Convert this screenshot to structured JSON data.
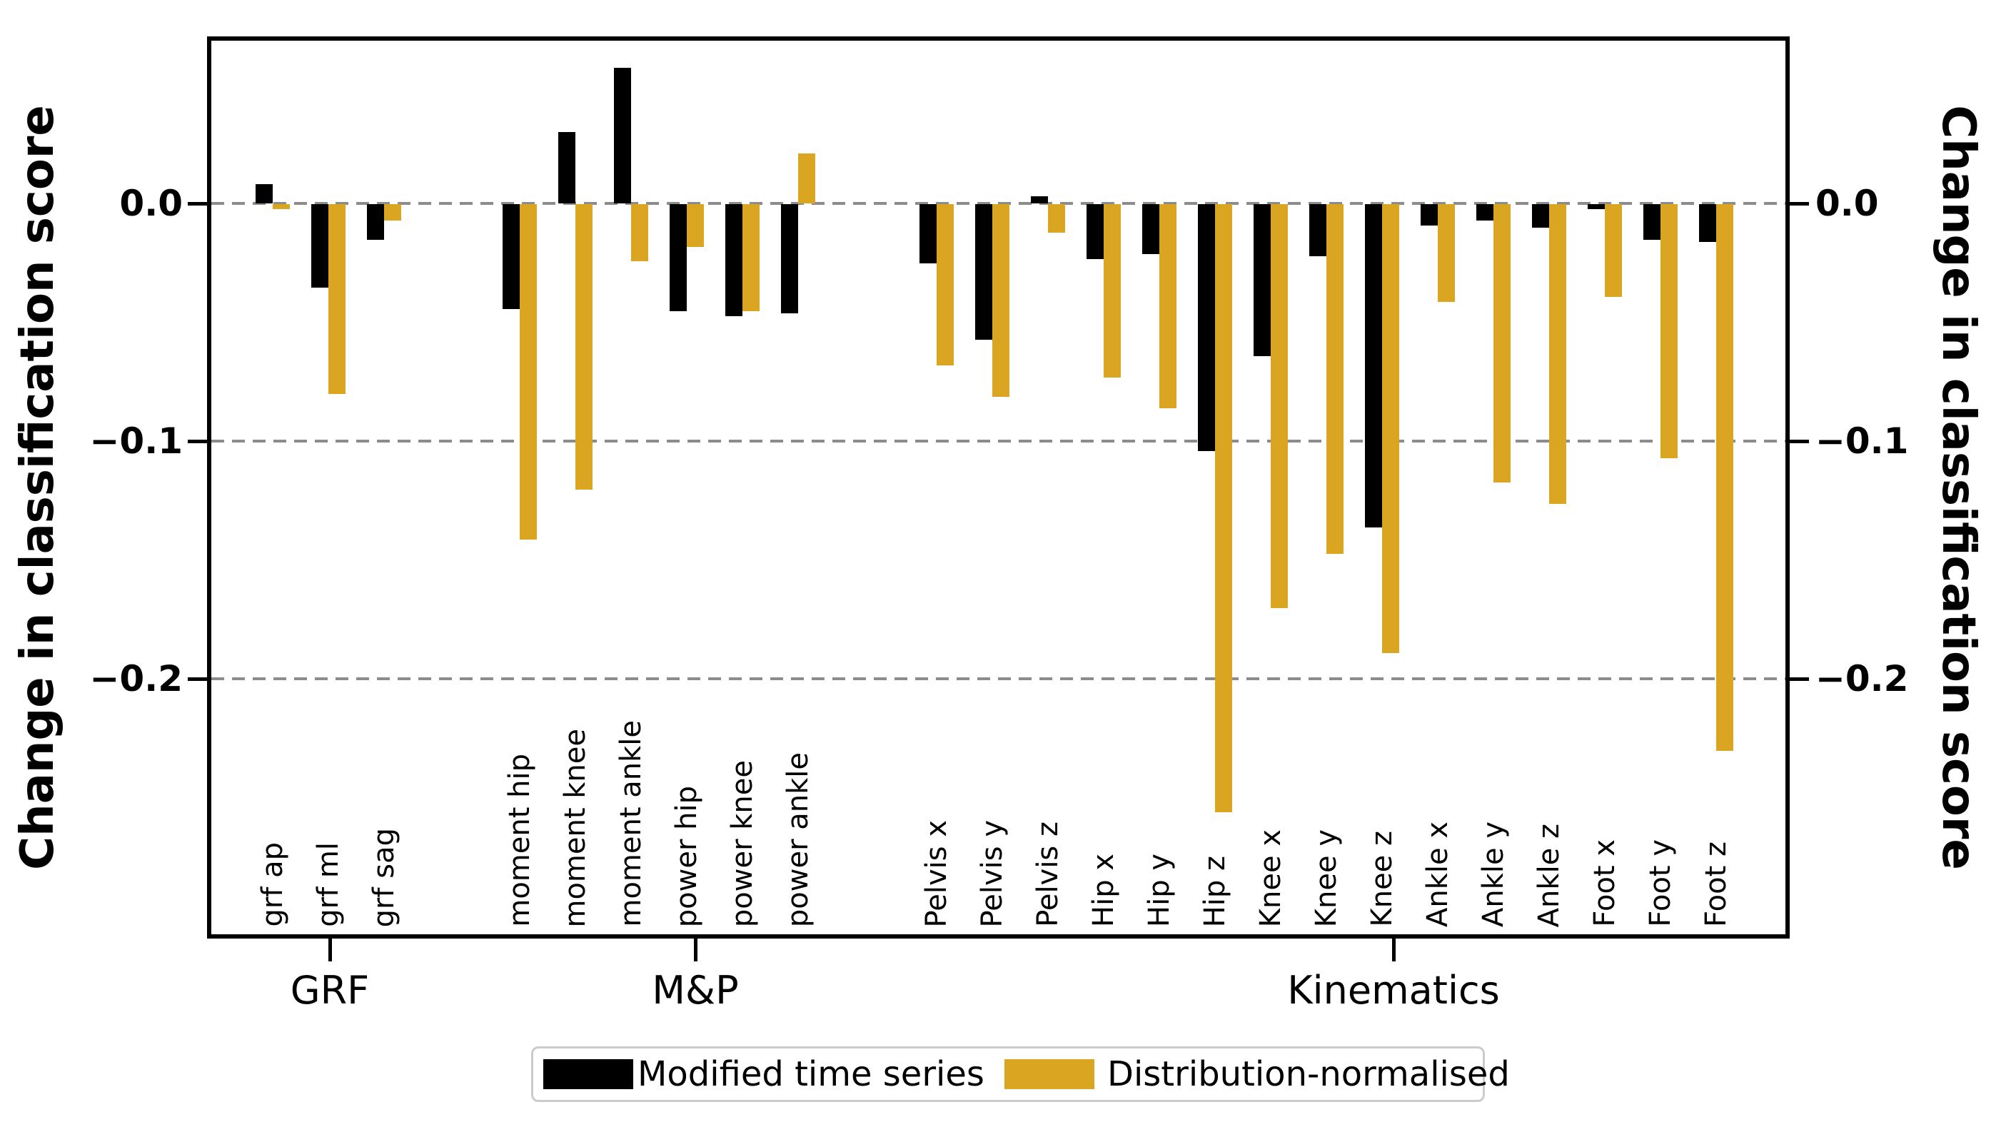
{
  "axes": {
    "ylabel_left": "Change in classification score",
    "ylabel_right": "Change in classification score",
    "yticks": [
      {
        "label": "0.0",
        "value": 0.0
      },
      {
        "label": "−0.1",
        "value": -0.1
      },
      {
        "label": "−0.2",
        "value": -0.2
      }
    ]
  },
  "chart_data": {
    "type": "bar",
    "title": "",
    "xlabel": "",
    "ylabel": "Change in classification score",
    "ylim": [
      -0.31,
      0.068
    ],
    "grid": "horizontal dashed gray lines at 0.0, -0.1, -0.2",
    "gridlines": [
      0.0,
      -0.1,
      -0.2
    ],
    "legend_position": "bottom center",
    "groups": [
      {
        "label": "GRF",
        "categories": [
          "grf ap",
          "grf ml",
          "grf sag"
        ]
      },
      {
        "label": "M&P",
        "categories": [
          "moment hip",
          "moment knee",
          "moment ankle",
          "power hip",
          "power knee",
          "power ankle"
        ]
      },
      {
        "label": "Kinematics",
        "categories": [
          "Pelvis x",
          "Pelvis y",
          "Pelvis z",
          "Hip x",
          "Hip y",
          "Hip z",
          "Knee x",
          "Knee y",
          "Knee z",
          "Ankle x",
          "Ankle y",
          "Ankle z",
          "Foot x",
          "Foot y",
          "Foot z"
        ]
      }
    ],
    "series": [
      {
        "name": "Modified time series",
        "color": "#000000",
        "values": [
          0.008,
          -0.035,
          -0.015,
          -0.044,
          0.03,
          0.057,
          -0.045,
          -0.047,
          -0.046,
          -0.025,
          -0.057,
          0.003,
          -0.023,
          -0.021,
          -0.104,
          -0.064,
          -0.022,
          -0.136,
          -0.009,
          -0.007,
          -0.01,
          -0.002,
          -0.015,
          -0.016
        ]
      },
      {
        "name": "Distribution-normalised",
        "color": "#DAA520",
        "values": [
          -0.002,
          -0.08,
          -0.007,
          -0.141,
          -0.12,
          -0.024,
          -0.018,
          -0.045,
          0.021,
          -0.068,
          -0.081,
          -0.012,
          -0.073,
          -0.086,
          -0.256,
          -0.17,
          -0.147,
          -0.189,
          -0.041,
          -0.117,
          -0.126,
          -0.039,
          -0.107,
          -0.23
        ]
      }
    ]
  }
}
